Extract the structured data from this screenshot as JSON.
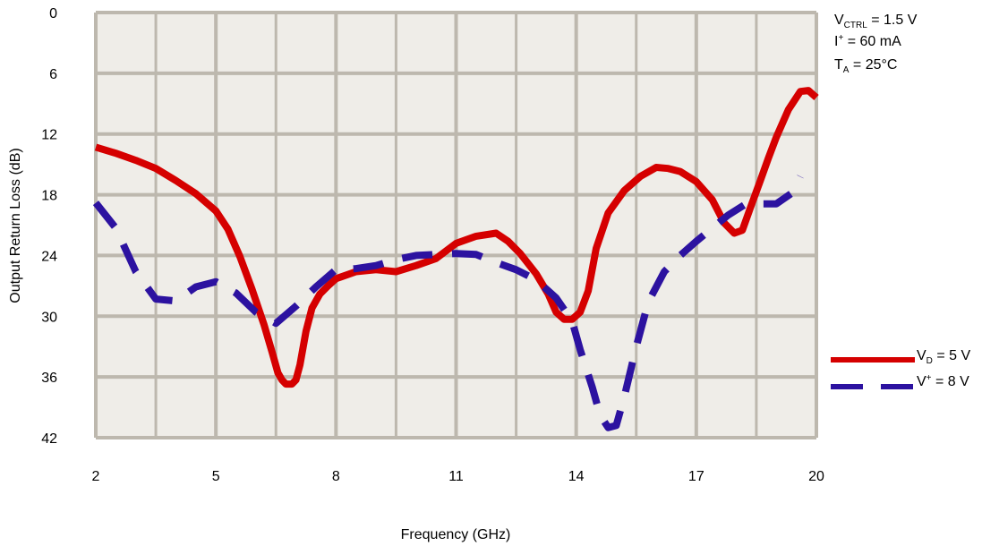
{
  "chart_data": {
    "type": "line",
    "title": "",
    "xlabel": "Frequency (GHz)",
    "ylabel": "Output Return Loss (dB)",
    "xlim": [
      2,
      20
    ],
    "ylim": [
      0,
      42
    ],
    "y_inverted": true,
    "x_ticks": [
      2,
      5,
      8,
      11,
      14,
      17,
      20
    ],
    "y_ticks": [
      0,
      6,
      12,
      18,
      24,
      30,
      36,
      42
    ],
    "grid": true,
    "legend_position": "right",
    "plot_background": "#efede8",
    "grid_color": "#bdb8ae",
    "annotation": {
      "line1": {
        "main": "V",
        "sub": "CTRL",
        "rest": " = 1.5 V"
      },
      "line2": {
        "main": "I",
        "sup": "+",
        "rest": "  = 60 mA"
      },
      "line3": {
        "main": "T",
        "sub": "A",
        "rest": " = 25°C"
      }
    },
    "series": [
      {
        "name": "VD = 5 V",
        "legend": {
          "main": "V",
          "sub": "D",
          "rest": " = 5 V"
        },
        "color": "#d50000",
        "style": "solid",
        "x": [
          2.0,
          2.5,
          3.0,
          3.5,
          4.0,
          4.5,
          5.0,
          5.3,
          5.6,
          5.9,
          6.2,
          6.4,
          6.55,
          6.65,
          6.75,
          6.9,
          7.0,
          7.1,
          7.25,
          7.4,
          7.6,
          7.8,
          8.0,
          8.5,
          9.0,
          9.5,
          10.0,
          10.5,
          11.0,
          11.5,
          12.0,
          12.3,
          12.6,
          13.0,
          13.3,
          13.5,
          13.7,
          13.9,
          14.1,
          14.3,
          14.5,
          14.8,
          15.2,
          15.6,
          16.0,
          16.3,
          16.6,
          17.0,
          17.4,
          17.7,
          17.95,
          18.15,
          18.35,
          18.6,
          18.8,
          19.0,
          19.3,
          19.6,
          19.8,
          20.0
        ],
        "y": [
          13.3,
          13.9,
          14.6,
          15.4,
          16.6,
          17.9,
          19.6,
          21.4,
          24.1,
          27.3,
          30.8,
          33.5,
          35.6,
          36.3,
          36.7,
          36.7,
          36.3,
          34.8,
          31.5,
          29.2,
          27.8,
          27.0,
          26.3,
          25.6,
          25.4,
          25.6,
          25.0,
          24.3,
          22.8,
          22.1,
          21.8,
          22.6,
          23.8,
          25.8,
          27.8,
          29.6,
          30.3,
          30.3,
          29.6,
          27.5,
          23.3,
          19.8,
          17.6,
          16.2,
          15.3,
          15.4,
          15.7,
          16.7,
          18.5,
          20.8,
          21.8,
          21.5,
          19.3,
          16.6,
          14.4,
          12.3,
          9.6,
          7.8,
          7.7,
          8.4
        ]
      },
      {
        "name": "V+ = 8 V",
        "legend": {
          "main": "V",
          "sup": "+",
          "rest": " = 8 V"
        },
        "color": "#2c12a0",
        "style": "dashed",
        "x": [
          2.0,
          2.5,
          3.0,
          3.5,
          4.0,
          4.5,
          5.0,
          5.5,
          6.0,
          6.5,
          7.0,
          7.5,
          8.0,
          8.5,
          9.0,
          9.5,
          10.0,
          10.5,
          11.0,
          11.5,
          12.0,
          12.5,
          13.0,
          13.5,
          13.9,
          14.1,
          14.4,
          14.6,
          14.8,
          15.0,
          15.2,
          15.5,
          15.8,
          16.2,
          16.6,
          17.0,
          17.4,
          17.8,
          18.2,
          18.6,
          19.0,
          19.4,
          19.6
        ],
        "y": [
          18.8,
          21.3,
          25.6,
          28.3,
          28.5,
          27.1,
          26.6,
          27.7,
          29.6,
          30.7,
          29.0,
          27.1,
          25.4,
          25.3,
          25.0,
          24.4,
          24.0,
          23.9,
          23.8,
          23.9,
          24.7,
          25.4,
          26.4,
          28.2,
          30.5,
          33.3,
          37.0,
          39.8,
          41.0,
          40.8,
          38.0,
          33.0,
          28.6,
          25.6,
          24.0,
          22.6,
          21.3,
          20.0,
          19.0,
          18.9,
          18.9,
          17.8,
          16.2
        ]
      }
    ]
  }
}
